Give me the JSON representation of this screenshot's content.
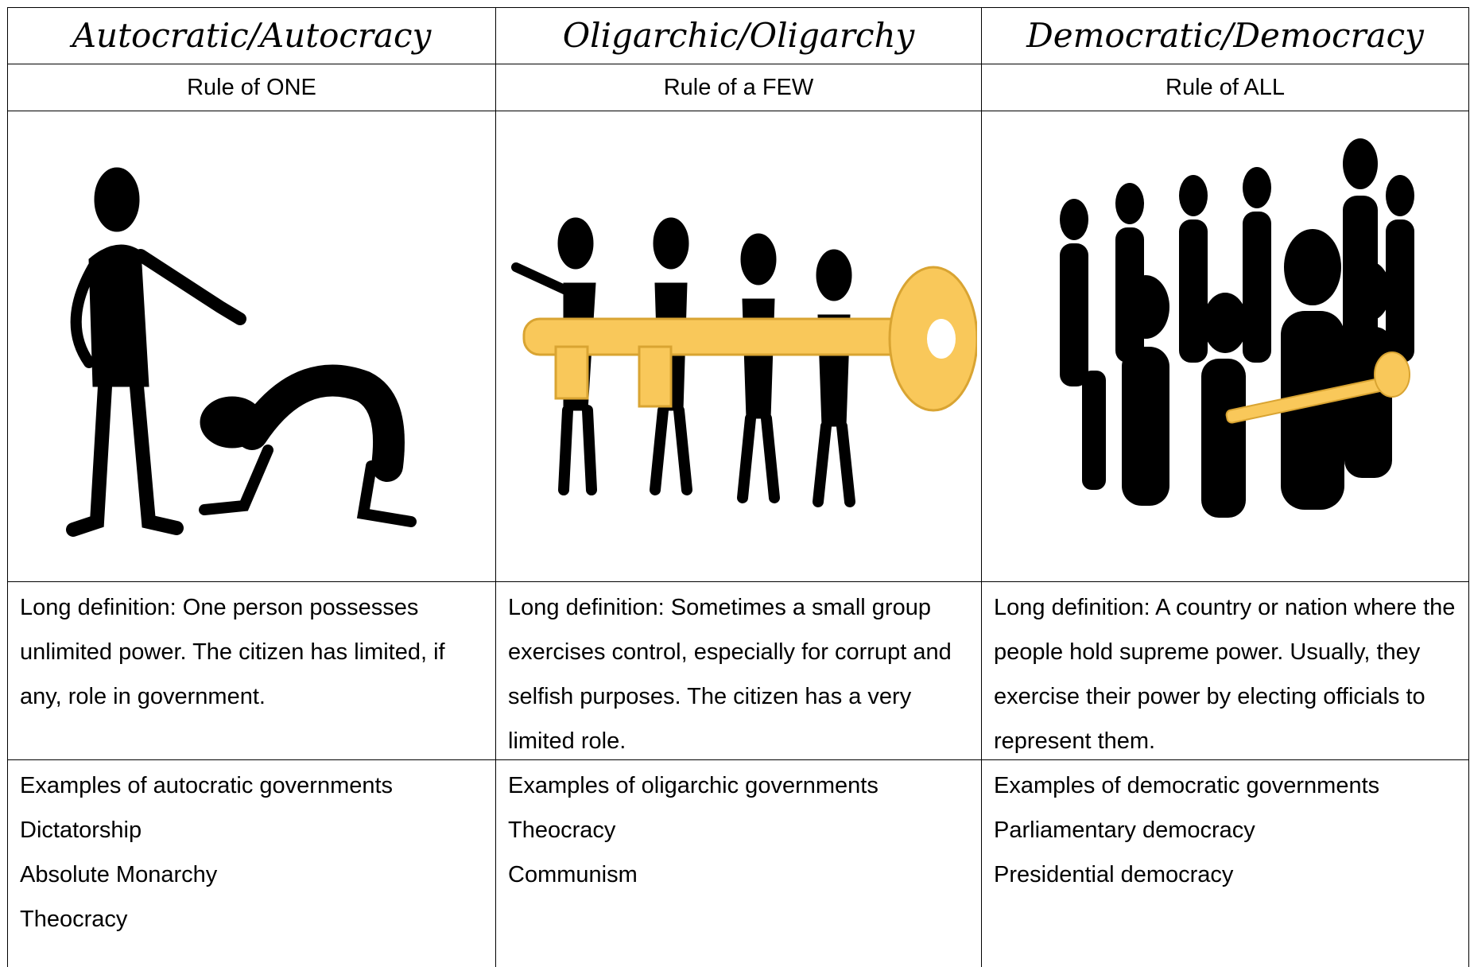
{
  "table": {
    "columns": [
      {
        "title": "Autocratic/Autocracy",
        "subtitle": "Rule of ONE",
        "definition_label": "Long definition",
        "definition": ": One person possesses unlimited power. The citizen has limited, if any, role in government.",
        "examples_heading": "Examples of autocratic governments",
        "examples": [
          "Dictatorship",
          "Absolute Monarchy",
          "Theocracy"
        ]
      },
      {
        "title": "Oligarchic/Oligarchy",
        "subtitle": "Rule of a FEW",
        "definition_label": "Long definition",
        "definition": ": Sometimes a small group exercises control, especially for corrupt and selfish purposes. The citizen has a very limited role.",
        "examples_heading": "Examples of oligarchic governments",
        "examples": [
          "Theocracy",
          "Communism"
        ]
      },
      {
        "title": "Democratic/Democracy",
        "subtitle": "Rule of ALL",
        "definition_label": "Long definition",
        "definition": ": A country or  nation where the people hold supreme power. Usually, they exercise their power by electing officials to represent them.",
        "examples_heading": "Examples of democratic governments",
        "examples": [
          "Parliamentary democracy",
          "Presidential democracy"
        ]
      }
    ]
  }
}
